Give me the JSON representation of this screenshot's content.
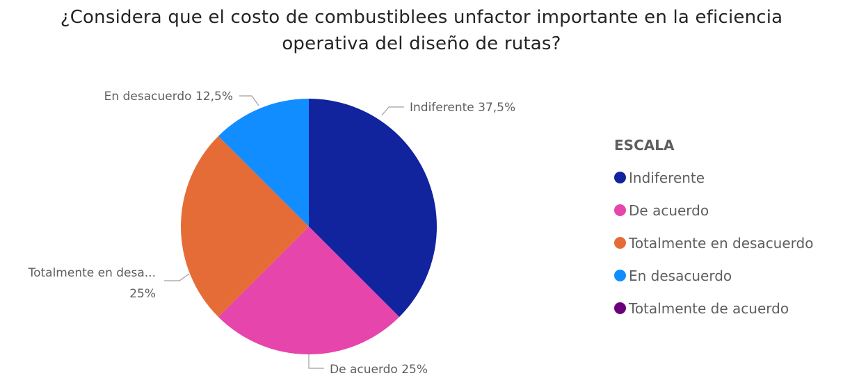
{
  "chart_data": {
    "type": "pie",
    "title_lines": [
      "¿Considera que el costo de combustiblees unfactor importante en la eficiencia",
      "operativa del diseño de rutas?"
    ],
    "legend_title": "ESCALA",
    "legend_position": "right",
    "slices": [
      {
        "name": "Indiferente",
        "value": 37.5,
        "color": "#12239e",
        "label": "Indiferente 37,5%"
      },
      {
        "name": "De acuerdo",
        "value": 25,
        "color": "#e645ab",
        "label": "De acuerdo 25%"
      },
      {
        "name": "Totalmente en desacuerdo",
        "value": 25,
        "color": "#e66c37",
        "label_lines": [
          "Totalmente en desa...",
          "25%"
        ]
      },
      {
        "name": "En desacuerdo",
        "value": 12.5,
        "color": "#118dff",
        "label": "En desacuerdo 12,5%"
      },
      {
        "name": "Totalmente de acuerdo",
        "value": 0,
        "color": "#6b007b"
      }
    ]
  }
}
